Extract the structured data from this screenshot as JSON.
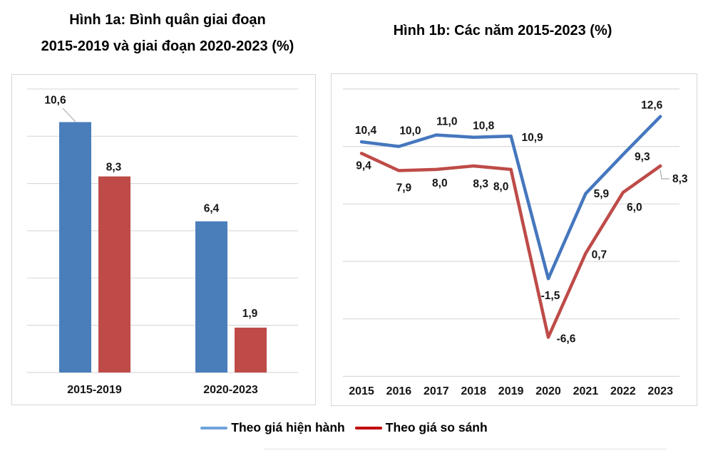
{
  "figure_1a": {
    "title_line1": "Hình 1a: Bình quân giai đoạn",
    "title_line2": "2015-2019 và giai đoạn 2020-2023 (%)"
  },
  "figure_1b": {
    "title": "Hình 1b: Các năm 2015-2023  (%)"
  },
  "legend": {
    "items": [
      {
        "label": "Theo giá hiện hành",
        "color": "#6DA3DC"
      },
      {
        "label": "Theo giá so sánh",
        "color": "#C00000"
      }
    ]
  },
  "colors": {
    "bar_blue": "#4A7EBB",
    "bar_red": "#BE4B48",
    "line_blue": "#4577BE",
    "line_red": "#BE4B48",
    "gridline": "#D9D9D9",
    "leader": "#ABABAB"
  },
  "chart_data": [
    {
      "type": "bar",
      "title": "Hình 1a: Bình quân giai đoạn 2015-2019 và giai đoạn 2020-2023 (%)",
      "categories": [
        "2015-2019",
        "2020-2023"
      ],
      "series": [
        {
          "name": "Theo giá hiện hành",
          "color": "#4A7EBB",
          "values": [
            10.6,
            6.4
          ]
        },
        {
          "name": "Theo giá so sánh",
          "color": "#BE4B48",
          "values": [
            8.3,
            1.9
          ]
        }
      ],
      "data_labels": [
        "10,6",
        "8,3",
        "6,4",
        "1,9"
      ],
      "xlabel": "",
      "ylabel": "",
      "ylim": [
        0,
        12
      ],
      "grid_step": 2,
      "grid": true,
      "y_tick_labels_visible": false,
      "number_format": "decimal-comma-1"
    },
    {
      "type": "line",
      "title": "Hình 1b: Các năm 2015-2023 (%)",
      "categories": [
        "2015",
        "2016",
        "2017",
        "2018",
        "2019",
        "2020",
        "2021",
        "2022",
        "2023"
      ],
      "series": [
        {
          "name": "Theo giá hiện hành",
          "color": "#4577BE",
          "values": [
            10.4,
            10.0,
            11.0,
            10.8,
            10.9,
            -1.5,
            5.9,
            9.3,
            12.6
          ]
        },
        {
          "name": "Theo giá so sánh",
          "color": "#BE4B48",
          "values": [
            9.4,
            7.9,
            8.0,
            8.3,
            8.0,
            -6.6,
            0.7,
            6.0,
            8.3
          ]
        }
      ],
      "data_labels_series1": [
        "10,4",
        "10,0",
        "11,0",
        "10,8",
        "10,9",
        "-1,5",
        "5,9",
        "9,3",
        "12,6"
      ],
      "data_labels_series2": [
        "9,4",
        "7,9",
        "8,0",
        "8,3",
        "8,0",
        "-6,6",
        "0,7",
        "6,0",
        "8,3"
      ],
      "xlabel": "",
      "ylabel": "",
      "ylim": [
        -10,
        15
      ],
      "grid_step": 5,
      "grid": true,
      "y_tick_labels_visible": false,
      "legend_position": "bottom",
      "number_format": "decimal-comma-1"
    }
  ]
}
